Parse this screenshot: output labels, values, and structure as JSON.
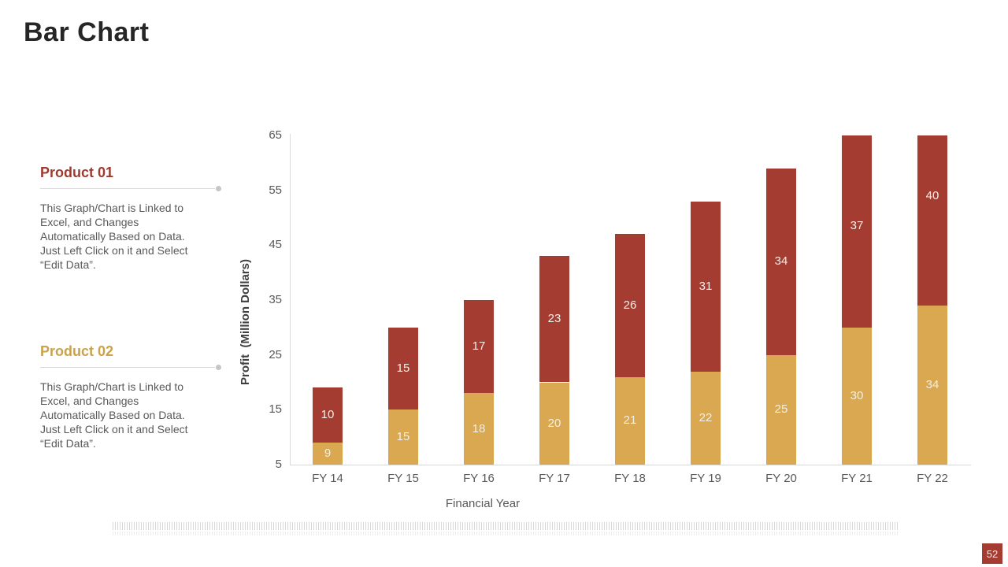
{
  "slide": {
    "title": "Bar Chart",
    "page_number": "52"
  },
  "products": [
    {
      "name": "Product 01",
      "color": "#9E3A2F",
      "description_lines": [
        "This Graph/Chart is Linked to",
        "Excel, and Changes",
        "Automatically Based on Data.",
        "Just Left Click on it and Select",
        "“Edit Data”."
      ]
    },
    {
      "name": "Product 02",
      "color": "#C9A24B",
      "description_lines": [
        "This Graph/Chart is Linked to",
        "Excel, and Changes",
        "Automatically Based on Data.",
        "Just Left Click on it and Select",
        "“Edit Data”."
      ]
    }
  ],
  "chart_data": {
    "type": "bar",
    "stacked": true,
    "title": "",
    "xlabel": "Financial Year",
    "ylabel": "Profit  (Million Dollars)",
    "categories": [
      "FY 14",
      "FY 15",
      "FY 16",
      "FY 17",
      "FY 18",
      "FY 19",
      "FY 20",
      "FY 21",
      "FY 22"
    ],
    "series": [
      {
        "name": "Product 02",
        "stack_position": "bottom",
        "color": "#D9A851",
        "values": [
          9,
          15,
          18,
          20,
          21,
          22,
          25,
          30,
          34
        ]
      },
      {
        "name": "Product 01",
        "stack_position": "top",
        "color": "#A53C31",
        "values": [
          10,
          15,
          17,
          23,
          26,
          31,
          34,
          37,
          40
        ]
      }
    ],
    "ylim": [
      5,
      65
    ],
    "yticks": [
      5,
      15,
      25,
      35,
      45,
      55,
      65
    ],
    "grid": false,
    "legend": "none",
    "bars_clipped_at_ymax": true,
    "bar_label_color": "#F2EFE8",
    "axis_text_color": "#595959"
  }
}
